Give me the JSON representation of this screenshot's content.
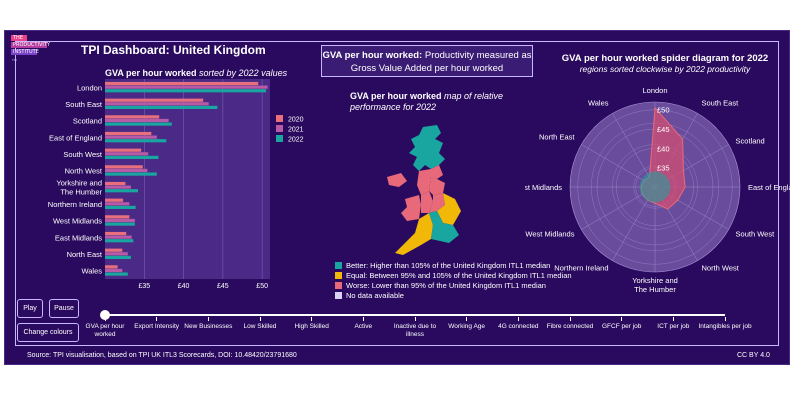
{
  "logo": {
    "line1": "THE",
    "line2": "PRODUCTIVITY",
    "line3": "INSTITUTE",
    "line4": "TPI"
  },
  "header": {
    "title": "TPI Dashboard: United Kingdom"
  },
  "gva_box": {
    "bold": "GVA per hour worked:",
    "text": "Productivity measured as Gross Value Added per hour worked"
  },
  "bar_panel": {
    "subtitle_bold": "GVA per hour worked",
    "subtitle_ital": "sorted by 2022 values"
  },
  "map_panel": {
    "subtitle_bold": "GVA per hour worked",
    "subtitle_ital": "map of relative performance for 2022",
    "legend": [
      {
        "color": "#1aa6a0",
        "label": "Better: Higher than 105% of the United Kingdom ITL1 median"
      },
      {
        "color": "#f2b807",
        "label": "Equal: Between 95% and 105% of the United Kingdom ITL1 median"
      },
      {
        "color": "#e86a7a",
        "label": "Worse: Lower than 95% of the United Kingdom ITL1 median"
      },
      {
        "color": "#dad2f2",
        "label": "No data available"
      }
    ]
  },
  "radar_panel": {
    "title": "GVA per hour worked spider diagram for 2022",
    "subtitle": "regions sorted clockwise by 2022 productivity",
    "rings": [
      "£35",
      "£40",
      "£45",
      "£50"
    ]
  },
  "chart_data": [
    {
      "type": "bar",
      "orientation": "horizontal",
      "categories": [
        "London",
        "South East",
        "Scotland",
        "East of England",
        "South West",
        "North West",
        "Yorkshire and The Humber",
        "Northern Ireland",
        "West Midlands",
        "East Midlands",
        "North East",
        "Wales"
      ],
      "series": [
        {
          "name": "2020",
          "color": "#e8707c",
          "values": [
            49.5,
            42.5,
            36.9,
            35.9,
            34.6,
            34.8,
            32.6,
            32.3,
            33.1,
            32.7,
            32.2,
            31.6
          ]
        },
        {
          "name": "2021",
          "color": "#b95aa6",
          "values": [
            50.7,
            43.2,
            38.1,
            36.6,
            35.5,
            35.4,
            33.3,
            33.1,
            33.8,
            33.4,
            32.9,
            32.2
          ]
        },
        {
          "name": "2022",
          "color": "#1aa6a0",
          "values": [
            50.5,
            44.3,
            38.5,
            37.8,
            36.8,
            36.6,
            34.2,
            33.9,
            33.8,
            33.6,
            33.3,
            32.9
          ]
        }
      ],
      "ticks": [
        "£35",
        "£40",
        "£45",
        "£50"
      ],
      "xlim": [
        30,
        51
      ]
    },
    {
      "type": "radar",
      "axes": [
        "London",
        "South East",
        "Scotland",
        "East of England",
        "South West",
        "North West",
        "Yorkshire and The Humber",
        "Northern Ireland",
        "West Midlands",
        "East Midlands",
        "North East",
        "Wales"
      ],
      "series": [
        {
          "name": "2022",
          "values": [
            50.5,
            44.3,
            38.5,
            37.8,
            36.8,
            36.6,
            34.2,
            33.9,
            33.8,
            33.6,
            33.3,
            32.9
          ]
        }
      ],
      "rlim": [
        30,
        52
      ],
      "ticks": [
        35,
        40,
        45,
        50
      ]
    }
  ],
  "controls": {
    "play": "Play",
    "pause": "Pause",
    "change_colours": "Change colours"
  },
  "timeline": [
    "GVA per hour worked",
    "Export Intensity",
    "New Businesses",
    "Low Skilled",
    "High Skilled",
    "Active",
    "Inactive due to illness",
    "Working Age",
    "4G connected",
    "Fibre connected",
    "GFCF per job",
    "ICT per job",
    "Intangibles per job"
  ],
  "footer": {
    "source": "Source: TPI visualisation, based on TPI UK ITL3 Scorecards, DOI: 10.48420/23791680",
    "license": "CC BY 4.0"
  }
}
